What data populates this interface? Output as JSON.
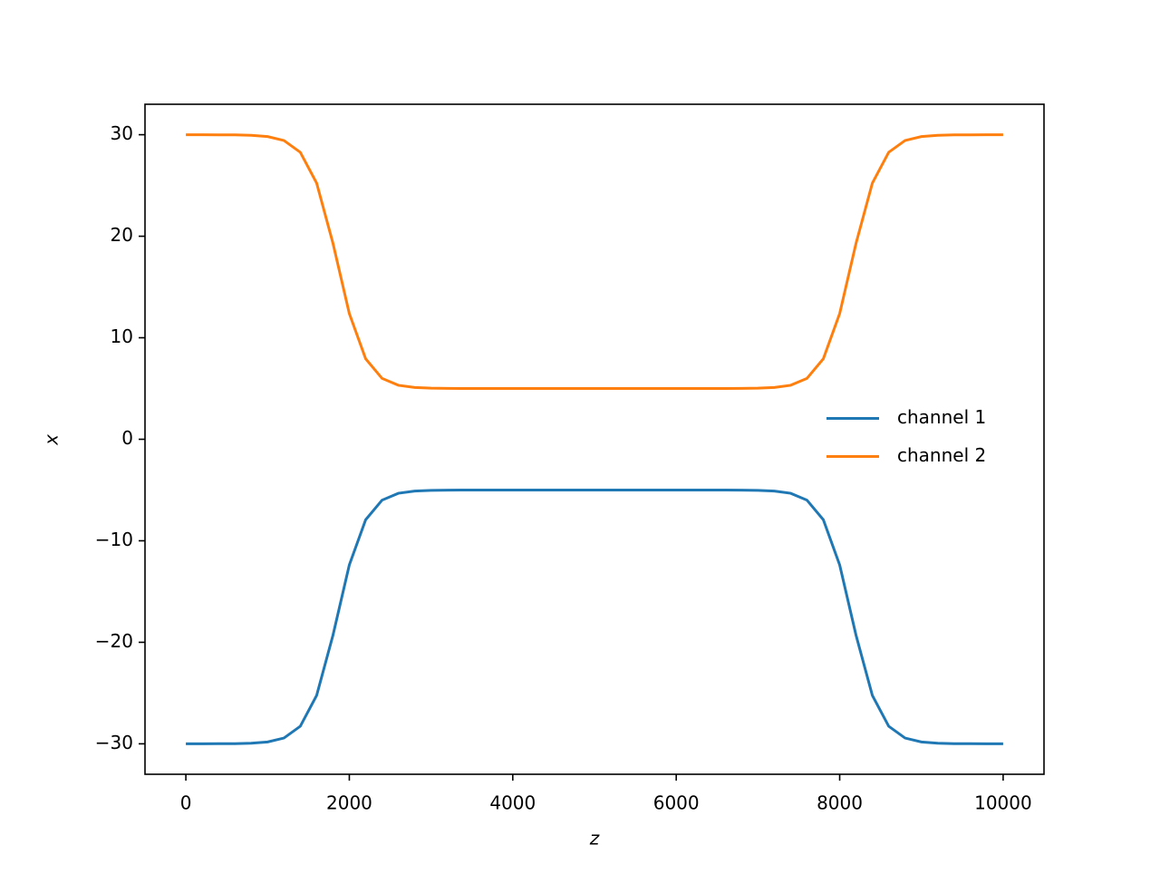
{
  "chart_data": {
    "type": "line",
    "x_label": "z",
    "y_label": "x",
    "x": [
      0,
      200,
      400,
      600,
      800,
      1000,
      1200,
      1400,
      1600,
      1800,
      2000,
      2200,
      2400,
      2600,
      2800,
      3000,
      3200,
      3400,
      3600,
      3800,
      4000,
      4200,
      4400,
      4600,
      4800,
      5000,
      5200,
      5400,
      5600,
      5800,
      6000,
      6200,
      6400,
      6600,
      6800,
      7000,
      7200,
      7400,
      7600,
      7800,
      8000,
      8200,
      8400,
      8600,
      8800,
      9000,
      9200,
      9400,
      9600,
      9800,
      10000
    ],
    "series": [
      {
        "name": "channel 1",
        "color": "#1f77b4",
        "values": [
          -30,
          -30,
          -29.99,
          -29.98,
          -29.94,
          -29.82,
          -29.43,
          -28.27,
          -25.24,
          -19.3,
          -12.38,
          -7.93,
          -6,
          -5.32,
          -5.1,
          -5.03,
          -5.01,
          -5,
          -5,
          -5,
          -5,
          -5,
          -5,
          -5,
          -5,
          -5,
          -5,
          -5,
          -5,
          -5,
          -5,
          -5,
          -5,
          -5,
          -5.01,
          -5.03,
          -5.1,
          -5.32,
          -6,
          -7.93,
          -12.38,
          -19.3,
          -25.24,
          -28.27,
          -29.43,
          -29.82,
          -29.94,
          -29.98,
          -29.99,
          -30,
          -30
        ]
      },
      {
        "name": "channel 2",
        "color": "#ff7f0e",
        "values": [
          30,
          30,
          29.99,
          29.98,
          29.94,
          29.82,
          29.43,
          28.27,
          25.24,
          19.3,
          12.38,
          7.93,
          6,
          5.32,
          5.1,
          5.03,
          5.01,
          5,
          5,
          5,
          5,
          5,
          5,
          5,
          5,
          5,
          5,
          5,
          5,
          5,
          5,
          5,
          5,
          5,
          5.01,
          5.03,
          5.1,
          5.32,
          6,
          7.93,
          12.38,
          19.3,
          25.24,
          28.27,
          29.43,
          29.82,
          29.94,
          29.98,
          29.99,
          30,
          30
        ]
      }
    ],
    "xlim": [
      -500,
      10500
    ],
    "xticks": [
      0,
      2000,
      4000,
      6000,
      8000,
      10000
    ],
    "ylim": [
      -33,
      33
    ],
    "yticks": [
      {
        "value": -30,
        "label": "−30"
      },
      {
        "value": -20,
        "label": "−20"
      },
      {
        "value": -10,
        "label": "−10"
      },
      0,
      10,
      20,
      30
    ],
    "grid": false,
    "legend": "center right"
  }
}
